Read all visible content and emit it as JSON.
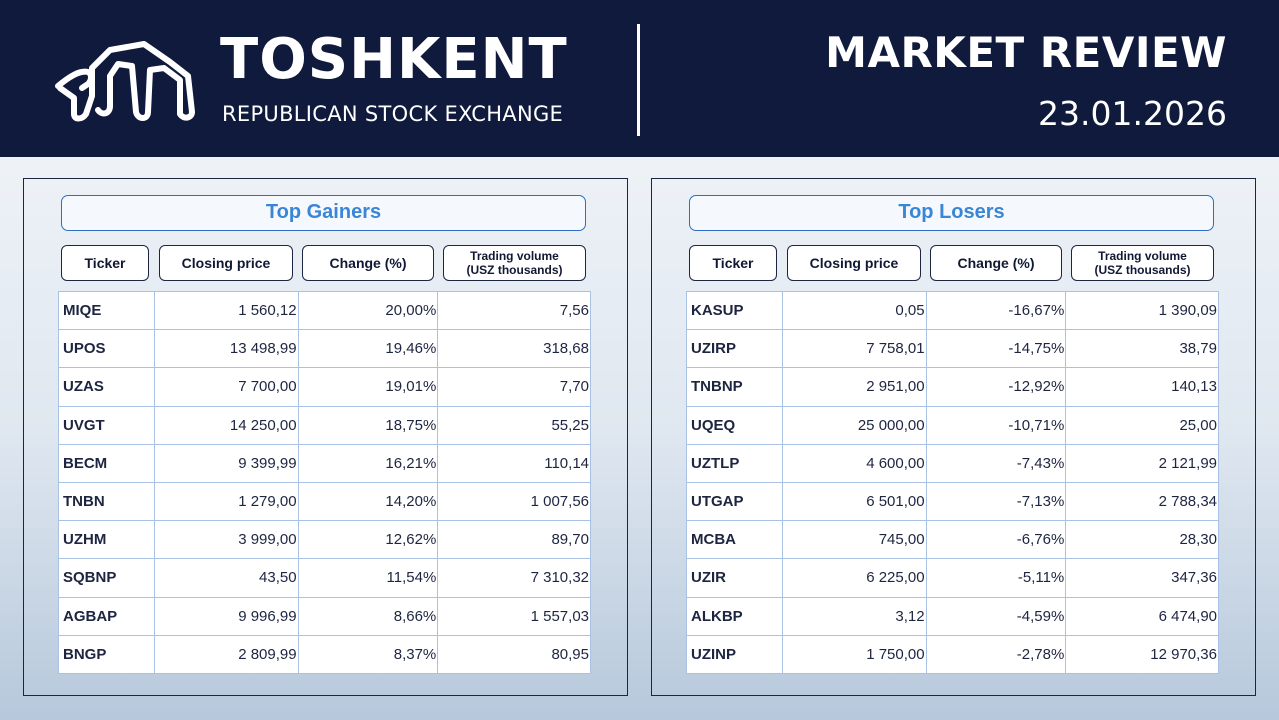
{
  "header": {
    "logo_icon": "toshkent-exchange-logo",
    "brand_title": "TOSHKENT",
    "brand_subtitle": "REPUBLICAN STOCK EXCHANGE",
    "review_title": "MARKET REVIEW",
    "date": "23.01.2026"
  },
  "colors": {
    "header_bg": "#0f1a3c",
    "accent_blue": "#3a86d6",
    "gain_green": "#19a64a",
    "loss_red": "#e01d1d"
  },
  "gainers": {
    "title": "Top Gainers",
    "columns": [
      "Ticker",
      "Closing price",
      "Change (%)",
      "Trading volume\n(USZ thousands)"
    ],
    "rows": [
      {
        "ticker": "MIQE",
        "price": "1 560,12",
        "change": "20,00%",
        "volume": "7,56"
      },
      {
        "ticker": "UPOS",
        "price": "13 498,99",
        "change": "19,46%",
        "volume": "318,68"
      },
      {
        "ticker": "UZAS",
        "price": "7 700,00",
        "change": "19,01%",
        "volume": "7,70"
      },
      {
        "ticker": "UVGT",
        "price": "14 250,00",
        "change": "18,75%",
        "volume": "55,25"
      },
      {
        "ticker": "BECM",
        "price": "9 399,99",
        "change": "16,21%",
        "volume": "110,14"
      },
      {
        "ticker": "TNBN",
        "price": "1 279,00",
        "change": "14,20%",
        "volume": "1 007,56"
      },
      {
        "ticker": "UZHM",
        "price": "3 999,00",
        "change": "12,62%",
        "volume": "89,70"
      },
      {
        "ticker": "SQBNP",
        "price": "43,50",
        "change": "11,54%",
        "volume": "7 310,32"
      },
      {
        "ticker": "AGBAP",
        "price": "9 996,99",
        "change": "8,66%",
        "volume": "1 557,03"
      },
      {
        "ticker": "BNGP",
        "price": "2 809,99",
        "change": "8,37%",
        "volume": "80,95"
      }
    ]
  },
  "losers": {
    "title": "Top Losers",
    "columns": [
      "Ticker",
      "Closing price",
      "Change (%)",
      "Trading volume\n(USZ thousands)"
    ],
    "rows": [
      {
        "ticker": "KASUP",
        "price": "0,05",
        "change": "-16,67%",
        "volume": "1 390,09"
      },
      {
        "ticker": "UZIRP",
        "price": "7 758,01",
        "change": "-14,75%",
        "volume": "38,79"
      },
      {
        "ticker": "TNBNP",
        "price": "2 951,00",
        "change": "-12,92%",
        "volume": "140,13"
      },
      {
        "ticker": "UQEQ",
        "price": "25 000,00",
        "change": "-10,71%",
        "volume": "25,00"
      },
      {
        "ticker": "UZTLP",
        "price": "4 600,00",
        "change": "-7,43%",
        "volume": "2 121,99"
      },
      {
        "ticker": "UTGAP",
        "price": "6 501,00",
        "change": "-7,13%",
        "volume": "2 788,34"
      },
      {
        "ticker": "MCBA",
        "price": "745,00",
        "change": "-6,76%",
        "volume": "28,30"
      },
      {
        "ticker": "UZIR",
        "price": "6 225,00",
        "change": "-5,11%",
        "volume": "347,36"
      },
      {
        "ticker": "ALKBP",
        "price": "3,12",
        "change": "-4,59%",
        "volume": "6 474,90"
      },
      {
        "ticker": "UZINP",
        "price": "1 750,00",
        "change": "-2,78%",
        "volume": "12 970,36"
      }
    ]
  }
}
